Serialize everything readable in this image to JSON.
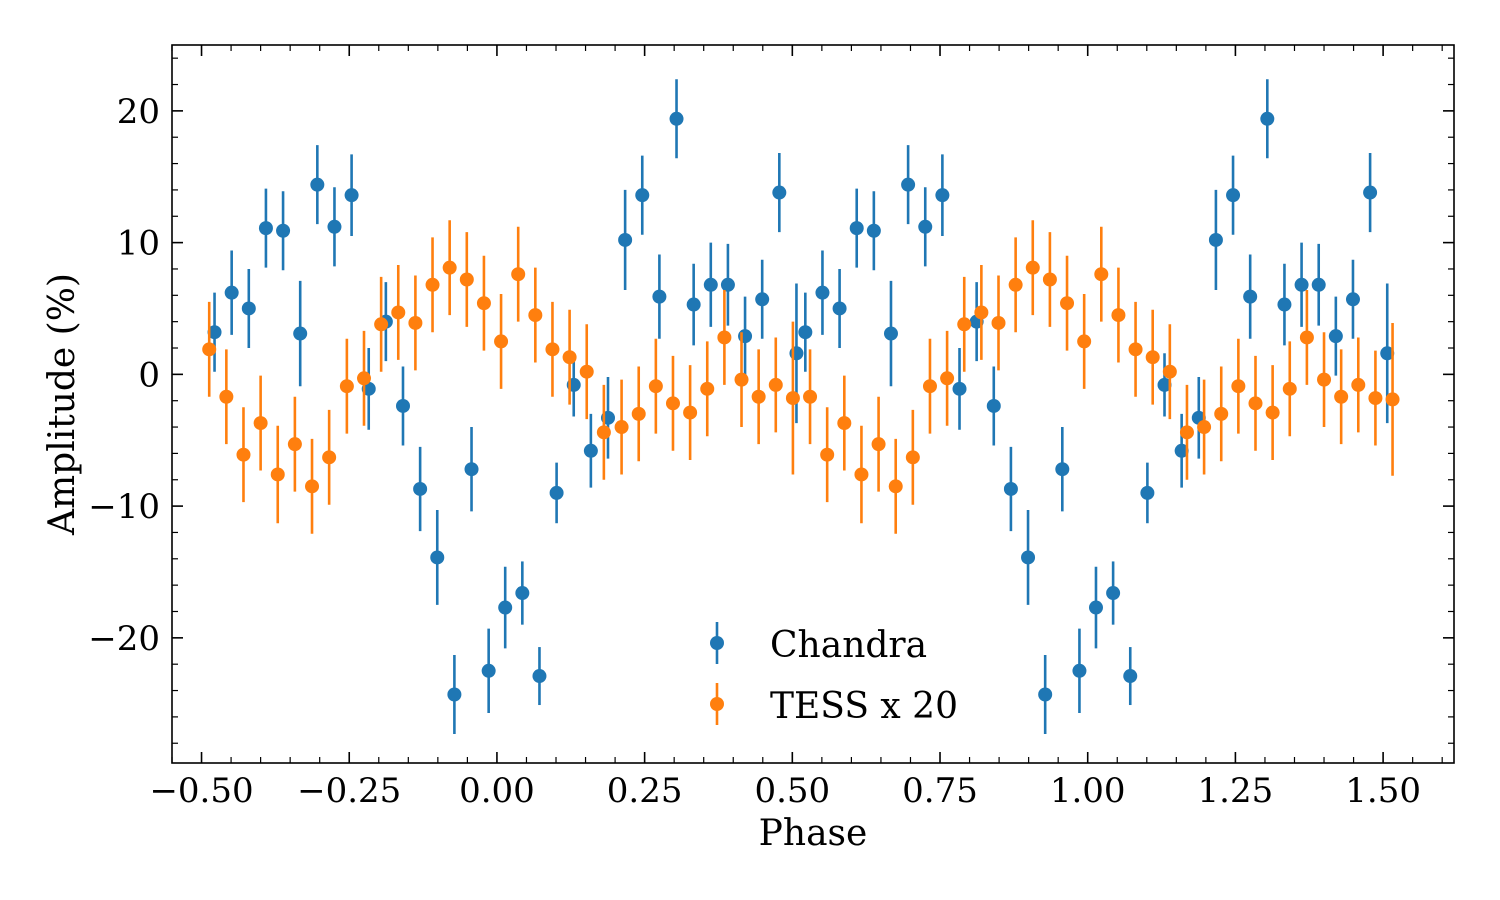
{
  "chart_data": {
    "type": "scatter",
    "xlabel": "Phase",
    "ylabel": "Amplitude (%)",
    "xlim": [
      -0.55,
      1.62
    ],
    "ylim": [
      -29.5,
      25
    ],
    "xticks": [
      -0.5,
      -0.25,
      0.0,
      0.25,
      0.5,
      0.75,
      1.0,
      1.25,
      1.5
    ],
    "xtick_labels": [
      "−0.50",
      "−0.25",
      "0.00",
      "0.25",
      "0.50",
      "0.75",
      "1.00",
      "1.25",
      "1.50"
    ],
    "yticks": [
      -20,
      -10,
      0,
      10,
      20
    ],
    "ytick_labels": [
      "−20",
      "−10",
      "0",
      "10",
      "20"
    ],
    "grid": false,
    "legend_position": "bottom-center",
    "series": [
      {
        "name": "Chandra",
        "color": "#1f77b4",
        "x": [
          -0.478,
          -0.449,
          -0.42,
          -0.391,
          -0.362,
          -0.333,
          -0.304,
          -0.275,
          -0.246,
          -0.217,
          -0.188,
          -0.159,
          -0.13,
          -0.101,
          -0.072,
          -0.043,
          -0.014,
          0.014,
          0.043,
          0.072,
          0.101,
          0.13,
          0.159,
          0.188,
          0.217,
          0.246,
          0.275,
          0.304,
          0.333,
          0.362,
          0.391,
          0.42,
          0.449,
          0.478,
          0.507,
          0.522,
          0.551,
          0.58,
          0.609,
          0.638,
          0.667,
          0.696,
          0.725,
          0.754,
          0.783,
          0.812,
          0.841,
          0.87,
          0.899,
          0.928,
          0.957,
          0.986,
          1.014,
          1.043,
          1.072,
          1.101,
          1.13,
          1.159,
          1.188,
          1.217,
          1.246,
          1.275,
          1.304,
          1.333,
          1.362,
          1.391,
          1.42,
          1.449,
          1.478,
          1.507
        ],
        "y": [
          3.2,
          6.2,
          5.0,
          11.1,
          10.9,
          3.1,
          14.4,
          11.2,
          13.6,
          -1.1,
          4.0,
          -2.4,
          -8.7,
          -13.9,
          -24.3,
          -7.2,
          -22.5,
          -17.7,
          -16.6,
          -22.9,
          -9.0,
          -0.8,
          -5.8,
          -3.3,
          10.2,
          13.6,
          5.9,
          19.4,
          5.3,
          6.8,
          6.8,
          2.9,
          5.7,
          13.8,
          1.6,
          3.2,
          6.2,
          5.0,
          11.1,
          10.9,
          3.1,
          14.4,
          11.2,
          13.6,
          -1.1,
          4.0,
          -2.4,
          -8.7,
          -13.9,
          -24.3,
          -7.2,
          -22.5,
          -17.7,
          -16.6,
          -22.9,
          -9.0,
          -0.8,
          -5.8,
          -3.3,
          10.2,
          13.6,
          5.9,
          19.4,
          5.3,
          6.8,
          6.8,
          2.9,
          5.7,
          13.8,
          1.6
        ],
        "yerr": [
          3.0,
          3.2,
          3.0,
          3.0,
          3.0,
          4.0,
          3.0,
          3.0,
          3.1,
          3.1,
          3.0,
          3.0,
          3.2,
          3.6,
          3.0,
          3.2,
          3.2,
          3.1,
          2.4,
          2.2,
          2.3,
          2.4,
          2.8,
          3.1,
          3.8,
          3.0,
          3.2,
          3.0,
          3.1,
          3.2,
          3.1,
          3.0,
          3.0,
          3.0,
          5.3,
          3.0,
          3.2,
          3.0,
          3.0,
          3.0,
          4.0,
          3.0,
          3.0,
          3.1,
          3.1,
          3.0,
          3.0,
          3.2,
          3.6,
          3.0,
          3.2,
          3.2,
          3.1,
          2.4,
          2.2,
          2.3,
          2.4,
          2.8,
          3.1,
          3.8,
          3.0,
          3.2,
          3.0,
          3.1,
          3.2,
          3.1,
          3.0,
          3.0,
          3.0,
          5.3
        ]
      },
      {
        "name": "TESS x 20",
        "color": "#ff7f0e",
        "x": [
          -0.487,
          -0.458,
          -0.429,
          -0.4,
          -0.371,
          -0.342,
          -0.313,
          -0.284,
          -0.254,
          -0.225,
          -0.196,
          -0.167,
          -0.138,
          -0.109,
          -0.08,
          -0.051,
          -0.022,
          0.007,
          0.036,
          0.065,
          0.094,
          0.123,
          0.152,
          0.181,
          0.211,
          0.24,
          0.269,
          0.298,
          0.327,
          0.356,
          0.385,
          0.414,
          0.443,
          0.472,
          0.501,
          0.53,
          0.559,
          0.588,
          0.617,
          0.646,
          0.675,
          0.704,
          0.733,
          0.762,
          0.791,
          0.82,
          0.849,
          0.878,
          0.907,
          0.936,
          0.965,
          0.994,
          1.023,
          1.052,
          1.081,
          1.11,
          1.139,
          1.168,
          1.197,
          1.226,
          1.255,
          1.284,
          1.313,
          1.342,
          1.371,
          1.4,
          1.429,
          1.458,
          1.487,
          1.516
        ],
        "y": [
          1.9,
          -1.7,
          -6.1,
          -3.7,
          -7.6,
          -5.3,
          -8.5,
          -6.3,
          -0.9,
          -0.3,
          3.8,
          4.7,
          3.9,
          6.8,
          8.1,
          7.2,
          5.4,
          2.5,
          7.6,
          4.5,
          1.9,
          1.3,
          0.2,
          -4.4,
          -4.0,
          -3.0,
          -0.9,
          -2.2,
          -2.9,
          -1.1,
          2.8,
          -0.4,
          -1.7,
          -0.8,
          -1.8,
          -1.7,
          -6.1,
          -3.7,
          -7.6,
          -5.3,
          -8.5,
          -6.3,
          -0.9,
          -0.3,
          3.8,
          4.7,
          3.9,
          6.8,
          8.1,
          7.2,
          5.4,
          2.5,
          7.6,
          4.5,
          1.9,
          1.3,
          0.2,
          -4.4,
          -4.0,
          -3.0,
          -0.9,
          -2.2,
          -2.9,
          -1.1,
          2.8,
          -0.4,
          -1.7,
          -0.8,
          -1.8,
          -1.9
        ],
        "yerr": [
          3.6,
          3.6,
          3.6,
          3.6,
          3.7,
          3.6,
          3.6,
          3.6,
          3.6,
          3.6,
          3.6,
          3.6,
          3.6,
          3.6,
          3.6,
          3.6,
          3.6,
          3.6,
          3.6,
          3.6,
          3.6,
          3.6,
          3.6,
          3.6,
          3.6,
          3.6,
          3.6,
          3.6,
          3.6,
          3.6,
          3.6,
          3.6,
          3.6,
          3.6,
          5.8,
          3.6,
          3.6,
          3.6,
          3.7,
          3.6,
          3.6,
          3.6,
          3.6,
          3.6,
          3.6,
          3.6,
          3.6,
          3.6,
          3.6,
          3.6,
          3.6,
          3.6,
          3.6,
          3.6,
          3.6,
          3.6,
          3.6,
          3.6,
          3.6,
          3.6,
          3.6,
          3.6,
          3.6,
          3.6,
          3.6,
          3.6,
          3.6,
          3.6,
          3.6,
          5.8
        ]
      }
    ]
  }
}
